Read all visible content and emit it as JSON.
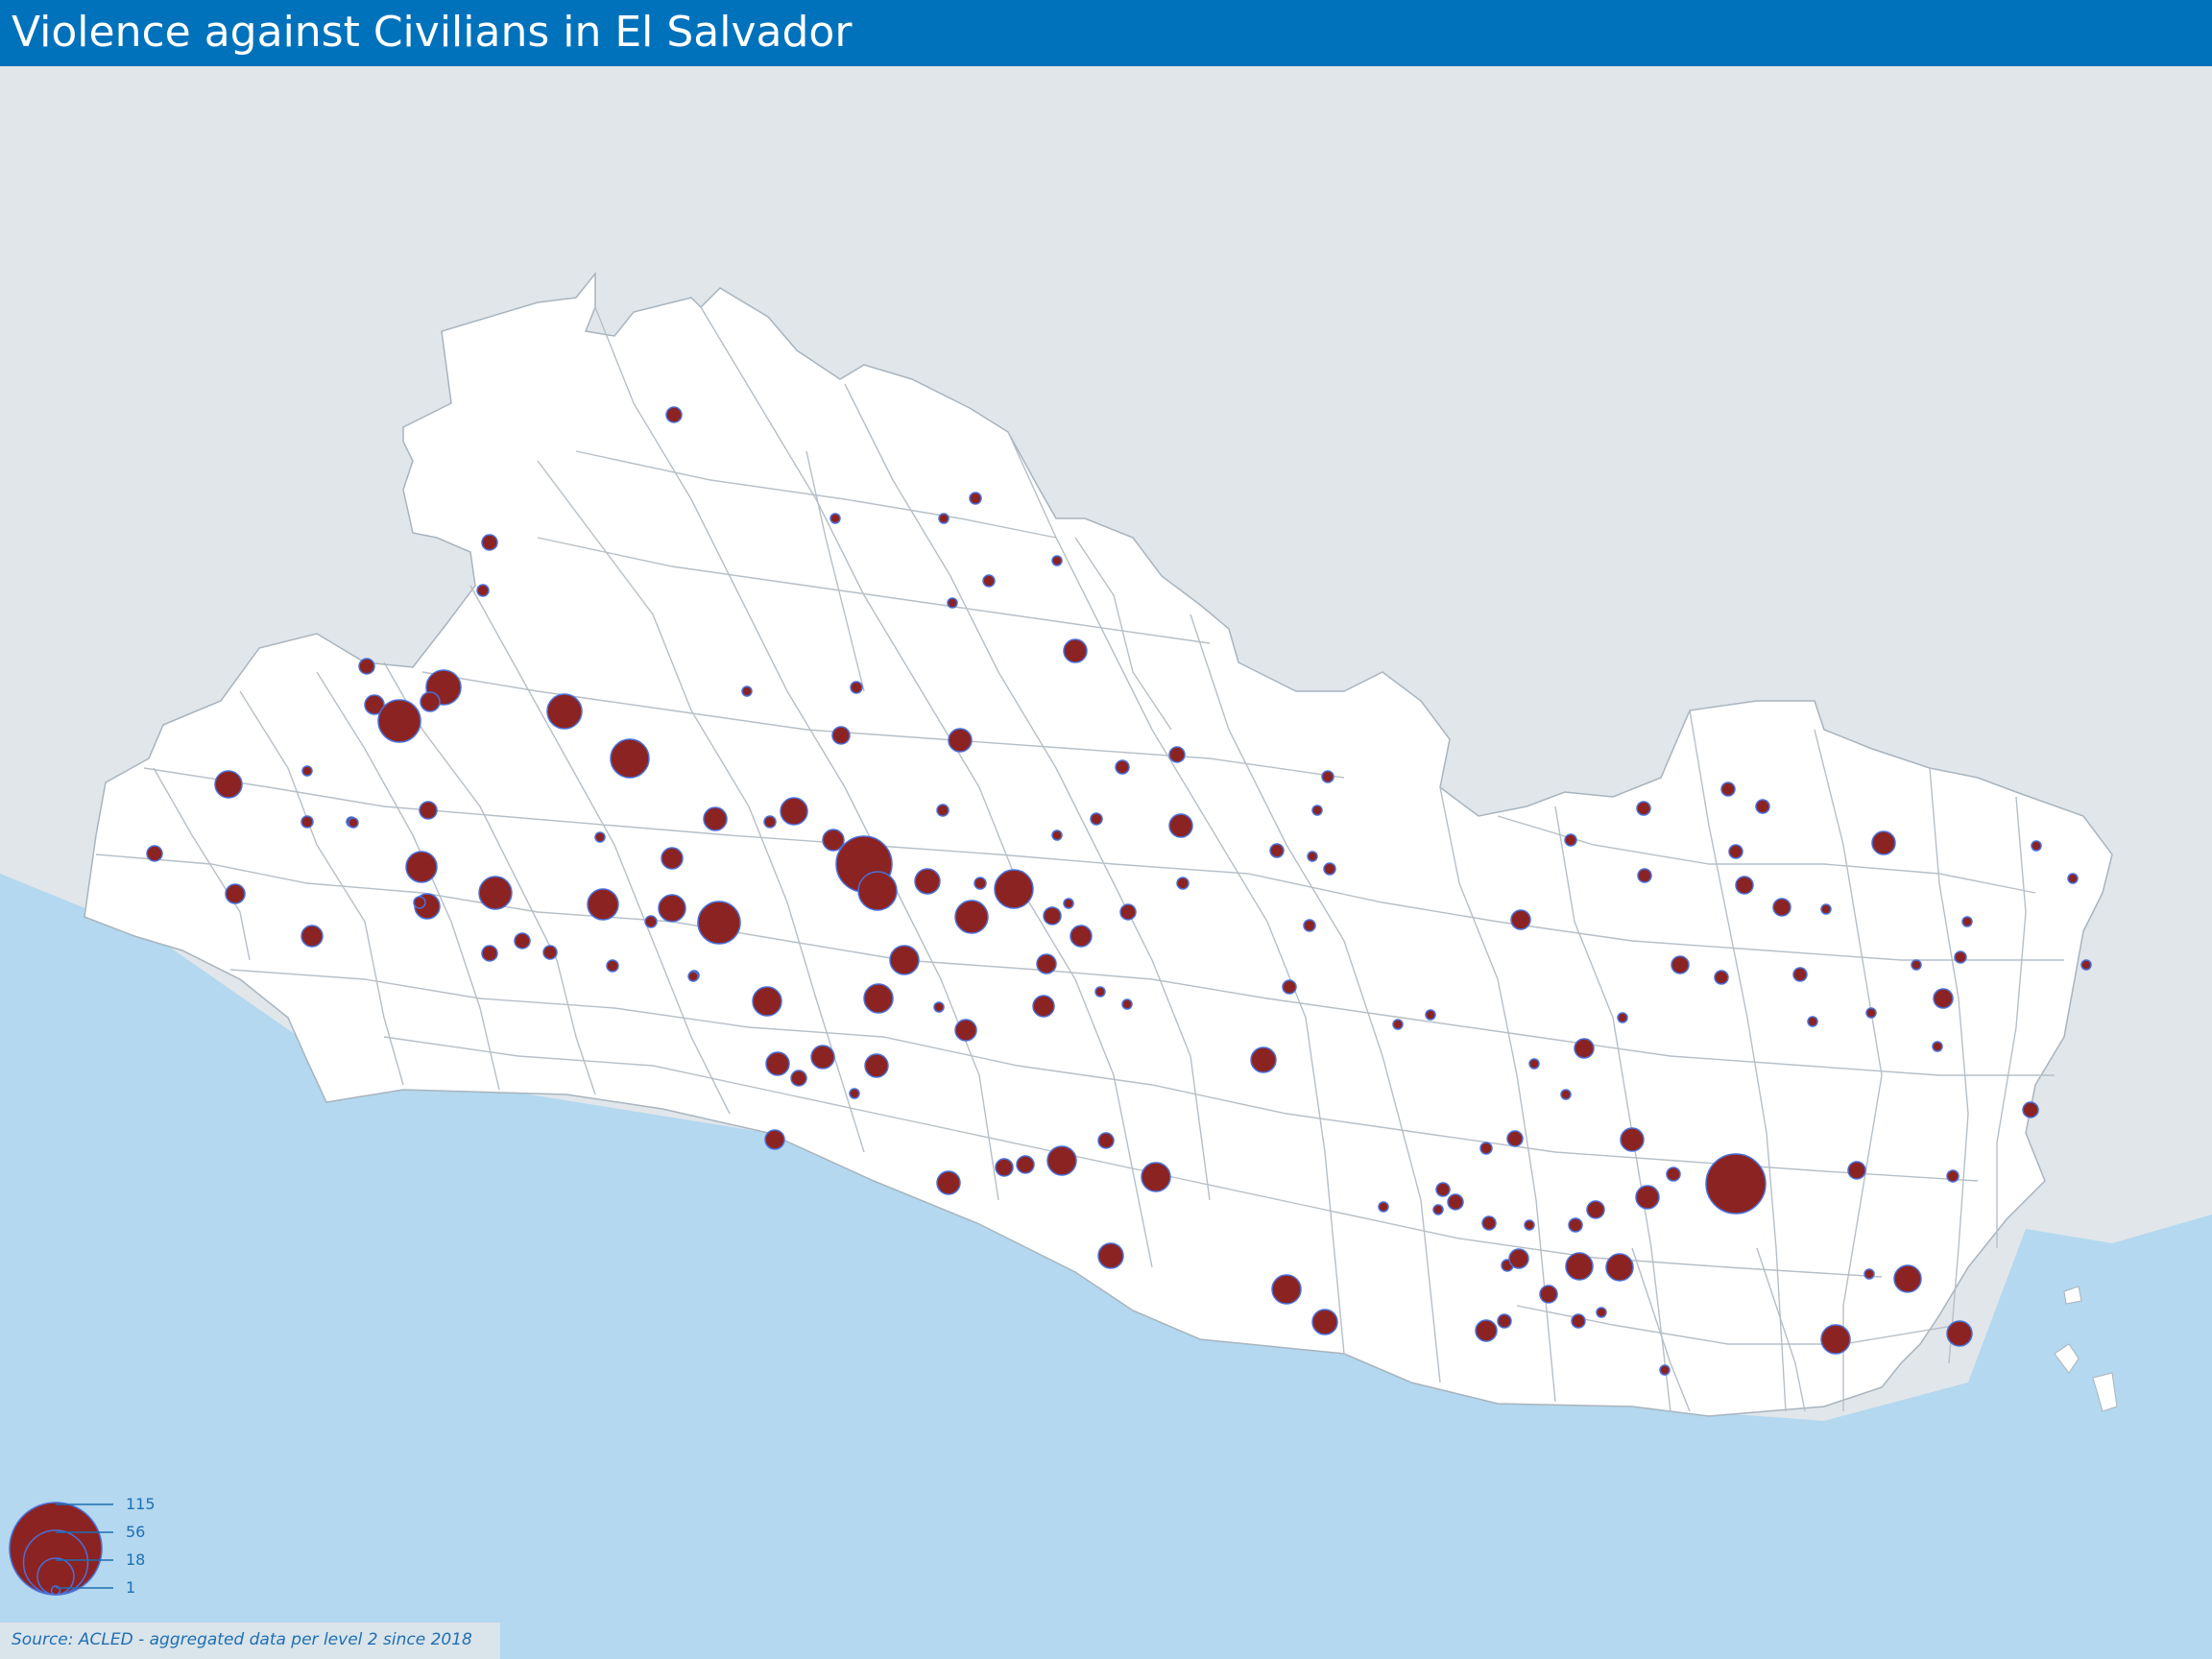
{
  "title": "Violence against Civilians in El Salvador",
  "source": "Source: ACLED - aggregated data per level 2 since 2018",
  "colors": {
    "header": "#0072bc",
    "land": "#ffffff",
    "neighbor_land": "#e1e6ea",
    "sea": "#b3d8ef",
    "marker_fill": "#8b2323",
    "marker_stroke": "#4a6fd8"
  },
  "legend": {
    "values": [
      115,
      56,
      18,
      1
    ],
    "labels": [
      "115",
      "56",
      "18",
      "1"
    ]
  }
}
